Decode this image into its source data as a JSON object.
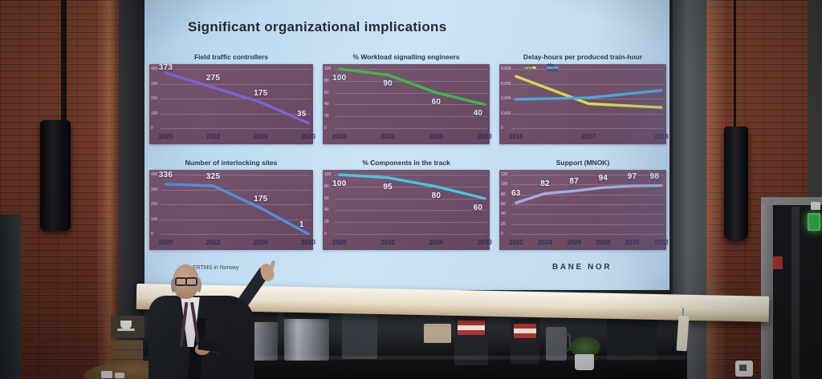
{
  "slide": {
    "title": "Significant organizational implications",
    "footer": {
      "left_text": "ERTMS in Norway",
      "logo_text": "BANE NOR"
    }
  },
  "colors": {
    "slide_bg": "#c3def2",
    "plot_bg": "#6e4d66",
    "title_text": "#242a33"
  },
  "chart_data": [
    {
      "id": "field-traffic-controllers",
      "type": "line",
      "title": "Field traffic controllers",
      "categories": [
        "2020",
        "2022",
        "2026",
        "2030"
      ],
      "series": [
        {
          "name": "Field traffic controllers",
          "color": "#7e63d8",
          "values": [
            373,
            275,
            175,
            35
          ]
        }
      ],
      "ylim": [
        0,
        400
      ],
      "yticks": [
        0,
        100,
        200,
        300,
        400
      ],
      "data_labels": true,
      "label_position": "above",
      "label_color": "#eae6f8",
      "grid": true,
      "legend": false
    },
    {
      "id": "workload-signalling-engineers",
      "type": "line",
      "title": "% Workload signalling engineers",
      "categories": [
        "2020",
        "2022",
        "2026",
        "2030"
      ],
      "series": [
        {
          "name": "% Workload signalling engineers",
          "color": "#3ab948",
          "values": [
            100,
            90,
            60,
            40
          ]
        }
      ],
      "ylim": [
        0,
        100
      ],
      "yticks": [
        0,
        20,
        40,
        60,
        80,
        100
      ],
      "data_labels": true,
      "label_position": "below",
      "label_color": "#cfeefb",
      "grid": true,
      "legend": false
    },
    {
      "id": "delay-hours-per-produced-train-hour",
      "type": "line",
      "title": "Delay-hours per produced train-hour",
      "categories": [
        "2016",
        "2017",
        "2018"
      ],
      "series": [
        {
          "name": "ØØL",
          "color": "#d6d84c",
          "values": [
            0.007,
            0.0033,
            0.0028
          ]
        },
        {
          "name": "Alle andre",
          "color": "#4aa7da",
          "values": [
            0.0039,
            0.0041,
            0.0051
          ]
        }
      ],
      "ylim": [
        0,
        0.008
      ],
      "yticks": [
        0,
        0.002,
        0.004,
        0.006,
        0.008
      ],
      "ytick_format": "comma",
      "data_labels": false,
      "label_position": "above",
      "label_color": "#eef2f8",
      "grid": true,
      "legend": true
    },
    {
      "id": "number-of-interlocking-sites",
      "type": "line",
      "title": "Number of interlocking sites",
      "categories": [
        "2020",
        "2022",
        "2026",
        "2030"
      ],
      "series": [
        {
          "name": "Number of interlocking sites",
          "color": "#4c90dc",
          "values": [
            336,
            325,
            175,
            1
          ]
        }
      ],
      "ylim": [
        0,
        400
      ],
      "yticks": [
        0,
        100,
        200,
        300,
        400
      ],
      "data_labels": true,
      "label_position": "above",
      "label_color": "#e9eef8",
      "grid": true,
      "legend": false
    },
    {
      "id": "components-in-the-track",
      "type": "line",
      "title": "% Components in the track",
      "categories": [
        "2020",
        "2022",
        "2026",
        "2030"
      ],
      "series": [
        {
          "name": "% Components in the track",
          "color": "#45c6de",
          "values": [
            100,
            95,
            80,
            60
          ]
        }
      ],
      "ylim": [
        0,
        100
      ],
      "yticks": [
        0,
        20,
        40,
        60,
        80,
        100
      ],
      "data_labels": true,
      "label_position": "below",
      "label_color": "#e9f2fa",
      "grid": true,
      "legend": false
    },
    {
      "id": "support-mnok",
      "type": "line",
      "title": "Support (MNOK)",
      "categories": [
        "2022",
        "2024",
        "2026",
        "2028",
        "2030",
        "2032"
      ],
      "series": [
        {
          "name": "Support (MNOK)",
          "color": "#a6ace4",
          "values": [
            63,
            82,
            87,
            94,
            97,
            98
          ]
        }
      ],
      "ylim": [
        0,
        120
      ],
      "yticks": [
        0,
        20,
        40,
        60,
        80,
        100,
        120
      ],
      "data_labels": true,
      "label_position": "above",
      "label_color": "#eef1f9",
      "grid": true,
      "legend": false
    }
  ]
}
